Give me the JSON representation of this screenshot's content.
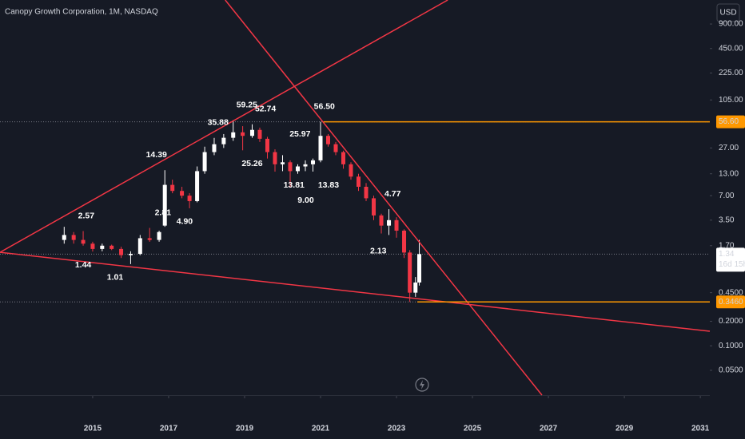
{
  "chart_data": {
    "type": "candlestick",
    "title": "Canopy Growth Corporation, 1M, NASDAQ",
    "currency": "USD",
    "log_scale": true,
    "up_color": "#ffffff",
    "down_color": "#f23645",
    "xlim": [
      2012.56,
      2031.25
    ],
    "xticks": [
      2015,
      2017,
      2019,
      2021,
      2023,
      2025,
      2027,
      2029,
      2031
    ],
    "ylim": [
      0.0248,
      1775
    ],
    "yticks": [
      {
        "value": 900,
        "label": "900.00"
      },
      {
        "value": 450,
        "label": "450.00"
      },
      {
        "value": 225,
        "label": "225.00"
      },
      {
        "value": 105,
        "label": "105.00"
      },
      {
        "value": 27,
        "label": "27.00"
      },
      {
        "value": 13,
        "label": "13.00"
      },
      {
        "value": 7,
        "label": "7.00"
      },
      {
        "value": 3.5,
        "label": "3.50"
      },
      {
        "value": 1.7,
        "label": "1.70"
      },
      {
        "value": 0.45,
        "label": "0.4500"
      },
      {
        "value": 0.2,
        "label": "0.2000"
      },
      {
        "value": 0.1,
        "label": "0.1000"
      },
      {
        "value": 0.05,
        "label": "0.0500"
      }
    ],
    "x": [
      2014.25,
      2014.5,
      2014.75,
      2015.0,
      2015.25,
      2015.5,
      2015.75,
      2016.0,
      2016.25,
      2016.5,
      2016.75,
      2016.9,
      2017.1,
      2017.35,
      2017.55,
      2017.75,
      2017.95,
      2018.2,
      2018.45,
      2018.7,
      2018.95,
      2019.2,
      2019.4,
      2019.6,
      2019.8,
      2020.0,
      2020.2,
      2020.4,
      2020.6,
      2020.8,
      2021.0,
      2021.2,
      2021.4,
      2021.6,
      2021.8,
      2022.0,
      2022.2,
      2022.4,
      2022.6,
      2022.8,
      2023.0,
      2023.2,
      2023.35,
      2023.5,
      2023.6
    ],
    "open": [
      2.0,
      2.3,
      2.0,
      1.8,
      1.55,
      1.7,
      1.55,
      1.3,
      1.35,
      2.1,
      2.0,
      3.0,
      9.5,
      8.0,
      7.0,
      6.0,
      14,
      24,
      30,
      36,
      42,
      38,
      45,
      35,
      24,
      17,
      18,
      14,
      16,
      17,
      19,
      38,
      30,
      24,
      17,
      12,
      9,
      6.5,
      4,
      3.0,
      3.5,
      2.6,
      1.4,
      0.45,
      0.6
    ],
    "high": [
      2.9,
      2.5,
      2.57,
      1.9,
      1.8,
      1.75,
      1.65,
      1.45,
      2.3,
      2.81,
      2.6,
      14.39,
      11,
      9.0,
      7.5,
      16,
      28,
      35.88,
      40,
      59.25,
      50,
      52.74,
      48,
      37,
      25.97,
      22,
      19,
      17,
      19,
      20,
      56.5,
      40,
      32,
      25,
      18,
      13,
      10,
      7,
      4.2,
      4.77,
      3.8,
      2.7,
      1.5,
      0.7,
      2.0
    ],
    "low": [
      1.8,
      1.8,
      1.7,
      1.44,
      1.45,
      1.5,
      1.2,
      1.01,
      1.3,
      1.9,
      1.9,
      2.9,
      7.5,
      6.5,
      4.9,
      5.8,
      13,
      22,
      27,
      33,
      25.26,
      36,
      32,
      20,
      13.81,
      14,
      9.0,
      13,
      14,
      13.83,
      18,
      28,
      22,
      15,
      11,
      8,
      6,
      3.5,
      2.4,
      2.3,
      2.13,
      1.2,
      0.346,
      0.4,
      0.55
    ],
    "close": [
      2.3,
      2.0,
      1.8,
      1.55,
      1.7,
      1.55,
      1.3,
      1.35,
      2.1,
      2.0,
      2.5,
      9.5,
      8.0,
      7.0,
      6.0,
      14,
      24,
      30,
      36,
      42,
      38,
      45,
      35,
      24,
      17,
      18,
      14,
      16,
      17,
      19,
      38,
      30,
      24,
      17,
      12,
      9,
      6.5,
      4,
      3.0,
      3.5,
      2.6,
      1.4,
      0.45,
      0.6,
      1.34
    ],
    "high_labels": {
      "x": [
        2014.83,
        2016.85,
        2016.68,
        2018.3,
        2019.06,
        2019.55,
        2020.46,
        2021.1,
        2022.9
      ],
      "values": [
        2.57,
        2.81,
        14.39,
        35.88,
        59.25,
        52.74,
        25.97,
        56.5,
        4.77
      ],
      "value_labels": [
        "2.57",
        "2.81",
        "14.39",
        "35.88",
        "59.25",
        "52.74",
        "25.97",
        "56.50",
        "4.77"
      ]
    },
    "low_labels": {
      "x": [
        2014.75,
        2015.59,
        2017.42,
        2019.2,
        2020.3,
        2020.61,
        2021.21,
        2022.52
      ],
      "values": [
        1.44,
        1.01,
        4.9,
        25.26,
        13.81,
        9.0,
        13.83,
        2.13
      ],
      "value_labels": [
        "1.44",
        "1.01",
        "4.90",
        "25.26",
        "13.81",
        "9.00",
        "13.83",
        "2.13"
      ]
    },
    "trendlines": [
      {
        "x": [
          2012.56,
          2024.35
        ],
        "values": [
          1.41,
          1775
        ]
      },
      {
        "x": [
          2018.49,
          2026.83
        ],
        "values": [
          1775,
          0.0248
        ]
      },
      {
        "x": [
          2012.56,
          2031.25
        ],
        "values": [
          1.41,
          0.151
        ]
      }
    ],
    "line_color": "#f23645",
    "levels": [
      {
        "x_start": 2021.08,
        "value": 56.6,
        "label": "56.60"
      },
      {
        "x_start": 2023.55,
        "value": 0.346,
        "label": "0.3460"
      }
    ],
    "level_color": "#ff9800",
    "last_price": {
      "value": 1.34,
      "label": "1.34",
      "countdown": "16d 15h"
    }
  }
}
